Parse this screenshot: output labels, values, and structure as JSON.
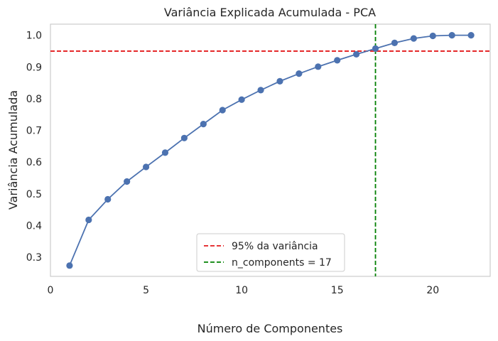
{
  "chart_data": {
    "type": "line",
    "title": "Variância Explicada Acumulada - PCA",
    "xlabel": "Número de Componentes",
    "ylabel": "Variância Acumulada",
    "xlim": [
      0,
      23
    ],
    "ylim": [
      0.24,
      1.035
    ],
    "xticks": [
      0,
      5,
      10,
      15,
      20
    ],
    "yticks": [
      0.3,
      0.4,
      0.5,
      0.6,
      0.7,
      0.8,
      0.9,
      1.0
    ],
    "xtick_labels": [
      "0",
      "5",
      "10",
      "15",
      "20"
    ],
    "ytick_labels": [
      "0.3",
      "0.4",
      "0.5",
      "0.6",
      "0.7",
      "0.8",
      "0.9",
      "1.0"
    ],
    "grid": false,
    "series": [
      {
        "color": "#4c72b0",
        "marker": "circle",
        "x": [
          1,
          2,
          3,
          4,
          5,
          6,
          7,
          8,
          9,
          10,
          11,
          12,
          13,
          14,
          15,
          16,
          17,
          18,
          19,
          20,
          21,
          22
        ],
        "y": [
          0.274,
          0.418,
          0.483,
          0.539,
          0.585,
          0.63,
          0.676,
          0.72,
          0.764,
          0.797,
          0.827,
          0.855,
          0.879,
          0.901,
          0.921,
          0.94,
          0.958,
          0.976,
          0.99,
          0.998,
          1.0,
          1.0
        ]
      }
    ],
    "reference_lines": [
      {
        "orientation": "horizontal",
        "value": 0.95,
        "color": "#e31a1c",
        "style": "dashed",
        "label": "95% da variância"
      },
      {
        "orientation": "vertical",
        "value": 17,
        "color": "#008000",
        "style": "dashed",
        "label": "n_components = 17"
      }
    ],
    "legend": {
      "position": "lower-center"
    }
  }
}
